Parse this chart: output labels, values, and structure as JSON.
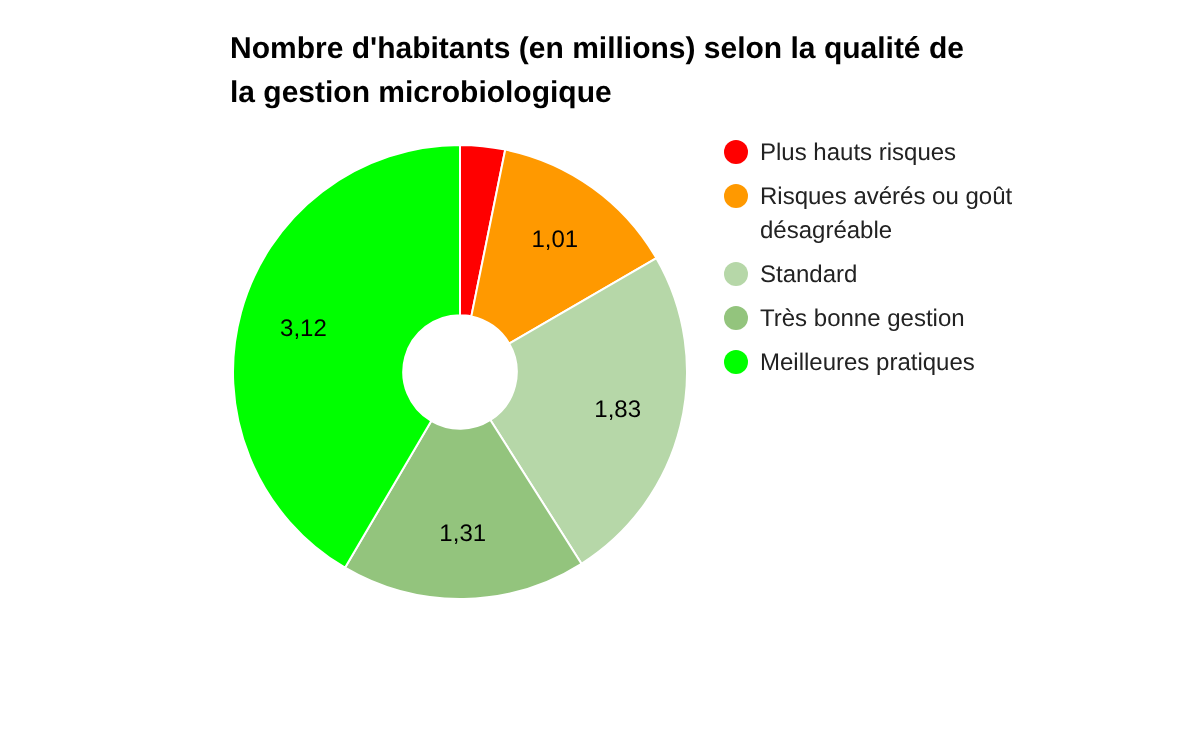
{
  "chart_data": {
    "type": "donut",
    "title": "Nombre d'habitants (en millions) selon la qualité de la gestion microbiologique",
    "categories": [
      "Plus hauts risques",
      "Risques avérés ou goût désagréable",
      "Standard",
      "Très bonne gestion",
      "Meilleures pratiques"
    ],
    "values": [
      0.24,
      1.01,
      1.83,
      1.31,
      3.12
    ],
    "colors": [
      "#ff0000",
      "#ff9900",
      "#b6d7a8",
      "#93c47d",
      "#00ff00"
    ],
    "value_labels": [
      null,
      "1,01",
      "1,83",
      "1,31",
      "3,12"
    ],
    "legend": "right"
  }
}
